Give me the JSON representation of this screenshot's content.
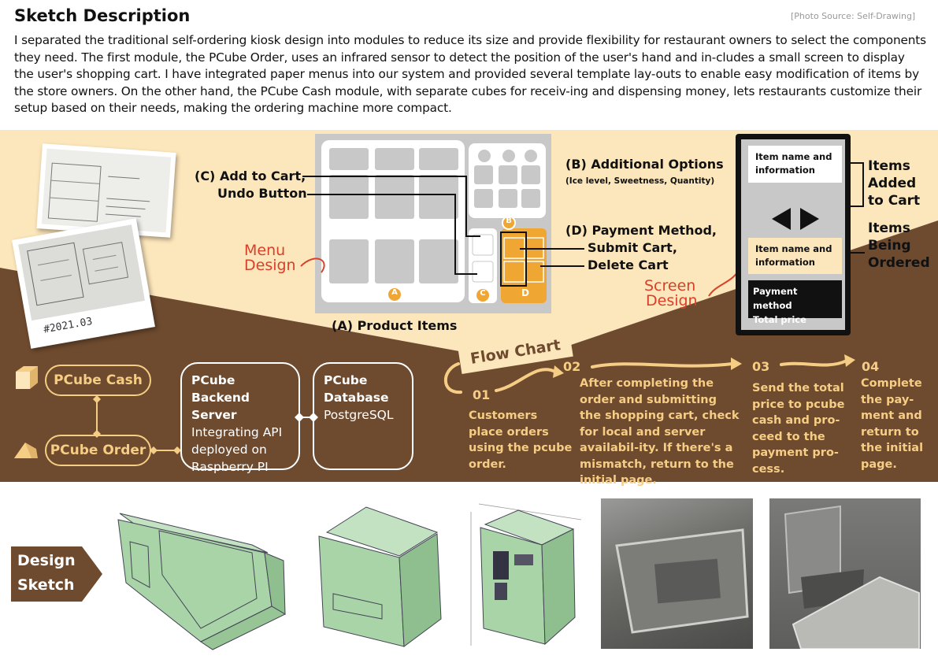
{
  "header": {
    "title": "Sketch Description",
    "source": "[Photo Source: Self-Drawing]",
    "description": "I separated the traditional self-ordering kiosk design into modules to reduce its size and provide flexibility for restaurant owners to select the components they need. The first module, the PCube Order, uses an infrared sensor to detect the position of the user's hand and in-cludes a small screen to display the user's shopping cart. I have integrated paper menus into our system and provided several template lay-outs to enable easy modification of items by the store owners.  On the other hand, the PCube Cash module, with separate cubes for receiv-ing and dispensing money, lets restaurants customize their setup based on their needs, making the ordering machine more compact."
  },
  "sketch_photo": {
    "caption": "#2021.03"
  },
  "menu_design": {
    "red_label_line1": "Menu",
    "red_label_line2": "Design",
    "label_c_line1": "(C) Add to Cart,",
    "label_c_line2": "Undo Button",
    "label_b_title": "(B) Additional Options",
    "label_b_sub": "(Ice level, Sweetness, Quantity)",
    "label_d_line1": "(D) Payment Method,",
    "label_d_line2": "Submit Cart,",
    "label_d_line3": "Delete Cart",
    "label_a": "(A) Product Items",
    "badge_a": "A",
    "badge_b": "B",
    "badge_c": "C",
    "badge_d": "D"
  },
  "screen_design": {
    "red_label_line1": "Screen",
    "red_label_line2": "Design",
    "item_top_line1": "Item name and",
    "item_top_line2": "information",
    "item_mid_line1": "Item name and",
    "item_mid_line2": "information",
    "payment_line1": "Payment method",
    "payment_line2": "Total price",
    "label_added_1": "Items",
    "label_added_2": "Added",
    "label_added_3": "to Cart",
    "label_ordered_1": "Items",
    "label_ordered_2": "Being",
    "label_ordered_3": "Ordered"
  },
  "architecture": {
    "cash": "PCube Cash",
    "order": "PCube Order",
    "backend_title_1": "PCube",
    "backend_title_2": "Backend Server",
    "backend_desc": "Integrating API deployed on Raspberry PI",
    "db_title_1": "PCube",
    "db_title_2": "Database",
    "db_desc": "PostgreSQL"
  },
  "flow_chart": {
    "title": "Flow Chart",
    "steps": [
      {
        "num": "01",
        "text": "Customers place orders using the pcube order."
      },
      {
        "num": "02",
        "text": "After completing the order and submitting the shopping cart, check for local and server availabil-ity. If there's a mismatch, return to the initial page."
      },
      {
        "num": "03",
        "text": "Send the total price to pcube cash and pro-ceed to the payment pro-cess."
      },
      {
        "num": "04",
        "text": "Complete the pay-ment and return to the initial page."
      }
    ]
  },
  "design_sketch": {
    "line1": "Design",
    "line2": "Sketch"
  },
  "colors": {
    "cream": "#fce6bb",
    "brown": "#6e4a2e",
    "orange": "#f0a632",
    "gold": "#f6cd85",
    "red": "#d9402a",
    "mint": "#a9d4a8"
  }
}
